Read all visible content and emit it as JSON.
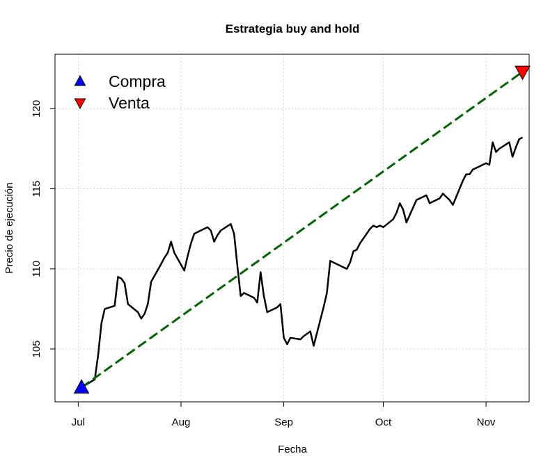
{
  "chart_data": {
    "type": "line",
    "title": "Estrategia buy and hold",
    "xlabel": "Fecha",
    "ylabel": "Precio de ejecución",
    "x_ticks": [
      {
        "label": "Jul",
        "date": "2021-07-01"
      },
      {
        "label": "Aug",
        "date": "2021-08-01"
      },
      {
        "label": "Sep",
        "date": "2021-09-01"
      },
      {
        "label": "Oct",
        "date": "2021-10-01"
      },
      {
        "label": "Nov",
        "date": "2021-11-01"
      }
    ],
    "y_ticks": [
      105,
      110,
      115,
      120
    ],
    "xlim": [
      "2021-06-24",
      "2021-11-14"
    ],
    "ylim": [
      101.7,
      123.4
    ],
    "grid": true,
    "legend_position": "top-left",
    "colors": {
      "price": "#000000",
      "trend": "#006400",
      "buy": "#0000ff",
      "sell": "#ff0000"
    },
    "legend": [
      {
        "label": "Compra",
        "marker": "triangle-up",
        "color": "#0000ff"
      },
      {
        "label": "Venta",
        "marker": "triangle-down",
        "color": "#ff0000"
      }
    ],
    "series": [
      {
        "type": "line",
        "points": [
          [
            "2021-07-02",
            102.6
          ],
          [
            "2021-07-06",
            103.1
          ],
          [
            "2021-07-07",
            104.6
          ],
          [
            "2021-07-08",
            106.6
          ],
          [
            "2021-07-09",
            107.5
          ],
          [
            "2021-07-12",
            107.7
          ],
          [
            "2021-07-13",
            109.5
          ],
          [
            "2021-07-14",
            109.4
          ],
          [
            "2021-07-15",
            109.1
          ],
          [
            "2021-07-16",
            107.8
          ],
          [
            "2021-07-19",
            107.3
          ],
          [
            "2021-07-20",
            106.9
          ],
          [
            "2021-07-21",
            107.2
          ],
          [
            "2021-07-22",
            107.8
          ],
          [
            "2021-07-23",
            109.2
          ],
          [
            "2021-07-26",
            110.3
          ],
          [
            "2021-07-27",
            110.7
          ],
          [
            "2021-07-28",
            111.0
          ],
          [
            "2021-07-29",
            111.7
          ],
          [
            "2021-07-30",
            111.0
          ],
          [
            "2021-08-02",
            109.9
          ],
          [
            "2021-08-03",
            110.8
          ],
          [
            "2021-08-04",
            111.6
          ],
          [
            "2021-08-05",
            112.2
          ],
          [
            "2021-08-06",
            112.3
          ],
          [
            "2021-08-09",
            112.6
          ],
          [
            "2021-08-10",
            112.4
          ],
          [
            "2021-08-11",
            111.7
          ],
          [
            "2021-08-12",
            112.1
          ],
          [
            "2021-08-13",
            112.4
          ],
          [
            "2021-08-16",
            112.8
          ],
          [
            "2021-08-17",
            112.2
          ],
          [
            "2021-08-18",
            110.2
          ],
          [
            "2021-08-19",
            108.3
          ],
          [
            "2021-08-20",
            108.5
          ],
          [
            "2021-08-23",
            108.2
          ],
          [
            "2021-08-24",
            107.9
          ],
          [
            "2021-08-25",
            109.8
          ],
          [
            "2021-08-26",
            108.3
          ],
          [
            "2021-08-27",
            107.3
          ],
          [
            "2021-08-30",
            107.6
          ],
          [
            "2021-08-31",
            107.8
          ],
          [
            "2021-09-01",
            105.7
          ],
          [
            "2021-09-02",
            105.3
          ],
          [
            "2021-09-03",
            105.7
          ],
          [
            "2021-09-06",
            105.6
          ],
          [
            "2021-09-07",
            105.8
          ],
          [
            "2021-09-09",
            106.1
          ],
          [
            "2021-09-10",
            105.2
          ],
          [
            "2021-09-13",
            107.6
          ],
          [
            "2021-09-14",
            108.5
          ],
          [
            "2021-09-15",
            110.5
          ],
          [
            "2021-09-16",
            110.4
          ],
          [
            "2021-09-20",
            110.0
          ],
          [
            "2021-09-21",
            110.4
          ],
          [
            "2021-09-22",
            111.1
          ],
          [
            "2021-09-23",
            111.2
          ],
          [
            "2021-09-24",
            111.6
          ],
          [
            "2021-09-27",
            112.5
          ],
          [
            "2021-09-28",
            112.7
          ],
          [
            "2021-09-29",
            112.6
          ],
          [
            "2021-09-30",
            112.7
          ],
          [
            "2021-10-01",
            112.6
          ],
          [
            "2021-10-04",
            113.1
          ],
          [
            "2021-10-05",
            113.5
          ],
          [
            "2021-10-06",
            114.1
          ],
          [
            "2021-10-07",
            113.7
          ],
          [
            "2021-10-08",
            112.9
          ],
          [
            "2021-10-11",
            114.3
          ],
          [
            "2021-10-12",
            114.4
          ],
          [
            "2021-10-13",
            114.5
          ],
          [
            "2021-10-14",
            114.6
          ],
          [
            "2021-10-15",
            114.1
          ],
          [
            "2021-10-18",
            114.4
          ],
          [
            "2021-10-19",
            114.7
          ],
          [
            "2021-10-20",
            114.5
          ],
          [
            "2021-10-21",
            114.3
          ],
          [
            "2021-10-22",
            114.0
          ],
          [
            "2021-10-25",
            115.5
          ],
          [
            "2021-10-26",
            115.9
          ],
          [
            "2021-10-27",
            115.9
          ],
          [
            "2021-10-28",
            116.2
          ],
          [
            "2021-10-29",
            116.3
          ],
          [
            "2021-11-01",
            116.6
          ],
          [
            "2021-11-02",
            116.5
          ],
          [
            "2021-11-03",
            117.9
          ],
          [
            "2021-11-04",
            117.3
          ],
          [
            "2021-11-05",
            117.5
          ],
          [
            "2021-11-08",
            117.9
          ],
          [
            "2021-11-09",
            117.0
          ],
          [
            "2021-11-10",
            117.6
          ],
          [
            "2021-11-11",
            118.1
          ],
          [
            "2021-11-12",
            118.2
          ]
        ]
      },
      {
        "type": "dashed-line",
        "points": [
          [
            "2021-07-02",
            102.6
          ],
          [
            "2021-11-12",
            122.3
          ]
        ]
      },
      {
        "type": "scatter",
        "label": "Compra",
        "points": [
          [
            "2021-07-02",
            102.6
          ]
        ]
      },
      {
        "type": "scatter",
        "label": "Venta",
        "points": [
          [
            "2021-11-12",
            122.3
          ]
        ]
      }
    ]
  }
}
